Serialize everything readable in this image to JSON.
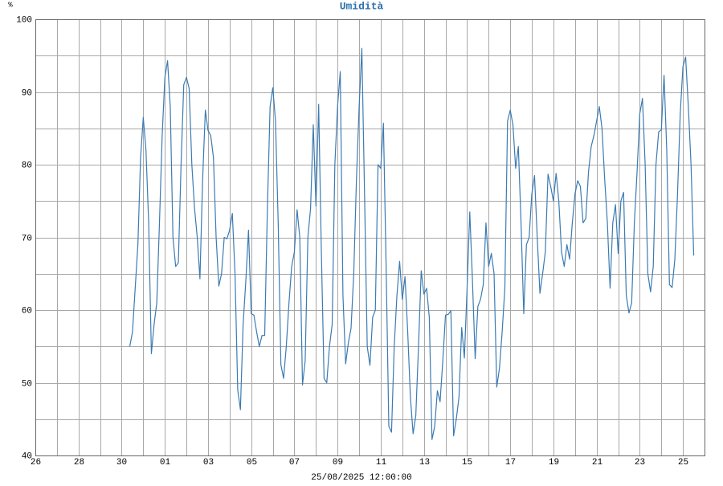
{
  "chart_data": {
    "type": "line",
    "title": "Umidità",
    "y_label": "%",
    "x_label": "25/08/2025 12:00:00",
    "color": "#3b7bb3",
    "xlim": [
      0,
      31
    ],
    "ylim": [
      40,
      100
    ],
    "xticks": [
      {
        "value": 0,
        "label": "26"
      },
      {
        "value": 2,
        "label": "28"
      },
      {
        "value": 4,
        "label": "30"
      },
      {
        "value": 6,
        "label": "01"
      },
      {
        "value": 8,
        "label": "03"
      },
      {
        "value": 10,
        "label": "05"
      },
      {
        "value": 12,
        "label": "07"
      },
      {
        "value": 14,
        "label": "09"
      },
      {
        "value": 16,
        "label": "11"
      },
      {
        "value": 18,
        "label": "13"
      },
      {
        "value": 20,
        "label": "15"
      },
      {
        "value": 22,
        "label": "17"
      },
      {
        "value": 24,
        "label": "19"
      },
      {
        "value": 26,
        "label": "21"
      },
      {
        "value": 28,
        "label": "23"
      },
      {
        "value": 30,
        "label": "25"
      }
    ],
    "x_minor_ticks": [
      1,
      3,
      5,
      7,
      9,
      11,
      13,
      15,
      17,
      19,
      21,
      23,
      25,
      27,
      29
    ],
    "yticks": [
      40,
      50,
      60,
      70,
      80,
      90,
      100
    ],
    "y_minor_ticks": [
      45,
      55,
      65,
      75,
      85,
      95
    ],
    "grid": true,
    "x": [
      4.375,
      4.5,
      4.625,
      4.75,
      4.875,
      5,
      5.125,
      5.25,
      5.375,
      5.5,
      5.625,
      5.75,
      5.875,
      6,
      6.125,
      6.25,
      6.375,
      6.5,
      6.625,
      6.75,
      6.875,
      7,
      7.125,
      7.25,
      7.375,
      7.5,
      7.625,
      7.75,
      7.875,
      8,
      8.125,
      8.25,
      8.375,
      8.5,
      8.625,
      8.75,
      8.875,
      9,
      9.125,
      9.25,
      9.375,
      9.5,
      9.625,
      9.75,
      9.875,
      10,
      10.125,
      10.25,
      10.375,
      10.5,
      10.625,
      10.75,
      10.875,
      11,
      11.125,
      11.25,
      11.375,
      11.5,
      11.625,
      11.75,
      11.875,
      12,
      12.125,
      12.25,
      12.375,
      12.5,
      12.625,
      12.75,
      12.875,
      13,
      13.125,
      13.25,
      13.375,
      13.5,
      13.625,
      13.75,
      13.875,
      14,
      14.125,
      14.25,
      14.375,
      14.5,
      14.625,
      14.75,
      14.875,
      15,
      15.125,
      15.25,
      15.375,
      15.5,
      15.625,
      15.75,
      15.875,
      16,
      16.125,
      16.25,
      16.375,
      16.5,
      16.625,
      16.75,
      16.875,
      17,
      17.125,
      17.25,
      17.375,
      17.5,
      17.625,
      17.75,
      17.875,
      18,
      18.125,
      18.25,
      18.375,
      18.5,
      18.625,
      18.75,
      18.875,
      19,
      19.125,
      19.25,
      19.375,
      19.5,
      19.625,
      19.75,
      19.875,
      20,
      20.125,
      20.25,
      20.375,
      20.5,
      20.625,
      20.75,
      20.875,
      21,
      21.125,
      21.25,
      21.375,
      21.5,
      21.625,
      21.75,
      21.875,
      22,
      22.125,
      22.25,
      22.375,
      22.5,
      22.625,
      22.75,
      22.875,
      23,
      23.125,
      23.25,
      23.375,
      23.5,
      23.625,
      23.75,
      23.875,
      24,
      24.125,
      24.25,
      24.375,
      24.5,
      24.625,
      24.75,
      24.875,
      25,
      25.125,
      25.25,
      25.375,
      25.5,
      25.625,
      25.75,
      25.875,
      26,
      26.125,
      26.25,
      26.375,
      26.5,
      26.625,
      26.75,
      26.875,
      27,
      27.125,
      27.25,
      27.375,
      27.5,
      27.625,
      27.75,
      27.875,
      28,
      28.125,
      28.25,
      28.375,
      28.5,
      28.625,
      28.75,
      28.875,
      29,
      29.125,
      29.25,
      29.375,
      29.5,
      29.625,
      29.75,
      29.875,
      30,
      30.125,
      30.25,
      30.375,
      30.5
    ],
    "values": [
      55,
      57,
      63,
      69,
      81,
      86.5,
      82,
      72,
      54,
      58,
      61,
      72,
      84,
      92,
      94.3,
      88,
      70,
      66,
      66.5,
      80,
      91,
      92,
      90.5,
      80,
      74,
      70,
      64.3,
      78,
      87.5,
      84.7,
      84,
      81,
      70,
      63.3,
      65,
      70,
      69.8,
      71,
      73.3,
      65,
      49,
      46.3,
      58,
      64,
      71,
      59.5,
      59.3,
      57,
      55,
      56.5,
      56.5,
      74,
      88,
      90.6,
      86,
      72,
      52.5,
      50.6,
      55,
      61,
      66,
      68,
      73.8,
      70,
      49.7,
      53,
      70,
      74,
      85.5,
      74.3,
      88.3,
      68,
      50.6,
      50,
      55,
      58,
      80,
      88,
      92.8,
      62,
      52.6,
      55.5,
      57.5,
      65,
      78,
      88,
      96,
      76,
      55,
      52.4,
      59,
      60,
      80,
      79.5,
      85.7,
      66,
      44,
      43.2,
      55,
      62,
      66.7,
      61.5,
      64.6,
      57,
      48,
      43,
      45.5,
      55,
      65.4,
      62.2,
      63,
      59,
      42.2,
      44,
      48.9,
      47.4,
      53,
      59.3,
      59.4,
      59.9,
      42.7,
      45,
      48,
      57.6,
      53.4,
      63,
      73.5,
      64,
      53.3,
      60.5,
      61.5,
      63.5,
      72,
      66,
      67.8,
      65,
      49.4,
      52,
      57,
      63,
      86,
      87.5,
      85.5,
      79.5,
      82.5,
      72,
      59.5,
      69,
      70,
      76,
      78.5,
      70,
      62.3,
      65,
      68,
      78.7,
      77,
      75,
      78.8,
      75,
      68,
      66,
      69,
      67,
      72,
      76,
      77.8,
      77,
      72,
      72.6,
      79,
      82.5,
      84,
      86,
      88,
      85,
      78,
      72,
      63,
      72,
      74.5,
      67.8,
      75,
      76.2,
      62,
      59.6,
      61,
      72,
      79,
      87,
      89.1,
      80,
      65,
      62.5,
      66,
      80,
      84.5,
      84.8,
      92.3,
      82,
      63.5,
      63.1,
      67,
      76,
      87,
      93.5,
      94.8,
      88,
      80,
      67.5
    ]
  }
}
